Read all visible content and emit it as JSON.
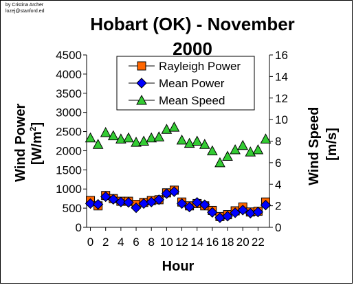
{
  "credit": {
    "line1": "by Cristina Archer",
    "line2": "lozej@stanford.ed"
  },
  "chart_data": {
    "type": "line",
    "title_line1": "Hobart (OK) - November",
    "title_line2": "2000",
    "xlabel": "Hour",
    "ylabel_left_main": "Wind Power",
    "ylabel_left_unit": "[W/m",
    "ylabel_left_sup": "2",
    "ylabel_left_close": "]",
    "ylabel_right_main": "Wind Speed",
    "ylabel_right_unit": "[m/s]",
    "x": [
      0,
      1,
      2,
      3,
      4,
      5,
      6,
      7,
      8,
      9,
      10,
      11,
      12,
      13,
      14,
      15,
      16,
      17,
      18,
      19,
      20,
      21,
      22,
      23
    ],
    "xlim": [
      -0.5,
      23.5
    ],
    "xticks": [
      0,
      2,
      4,
      6,
      8,
      10,
      12,
      14,
      16,
      18,
      20,
      22
    ],
    "xtick_labels": [
      "0",
      "2",
      "4",
      "6",
      "8",
      "10",
      "12",
      "14",
      "16",
      "18",
      "20",
      "22"
    ],
    "ylim_left": [
      0,
      4500
    ],
    "yticks_left": [
      0,
      500,
      1000,
      1500,
      2000,
      2500,
      3000,
      3500,
      4000,
      4500
    ],
    "ytick_labels_left": [
      "0",
      "500",
      "1000",
      "1500",
      "2000",
      "2500",
      "3000",
      "3500",
      "4000",
      "4500"
    ],
    "ylim_right": [
      0,
      16
    ],
    "yticks_right": [
      0,
      2,
      4,
      6,
      8,
      10,
      12,
      14,
      16
    ],
    "ytick_labels_right": [
      "0",
      "2",
      "4",
      "6",
      "8",
      "10",
      "12",
      "14",
      "16"
    ],
    "grid": false,
    "legend_position": "top-center",
    "series": [
      {
        "name": "Rayleigh Power",
        "axis": "left",
        "marker": "square",
        "color": "#ff6600",
        "values": [
          700,
          560,
          830,
          750,
          680,
          680,
          600,
          650,
          700,
          720,
          900,
          970,
          660,
          560,
          620,
          560,
          440,
          280,
          330,
          430,
          530,
          400,
          420,
          660
        ]
      },
      {
        "name": "Mean Power",
        "axis": "left",
        "marker": "diamond",
        "color": "#0000ff",
        "values": [
          620,
          600,
          800,
          730,
          660,
          650,
          510,
          620,
          660,
          720,
          880,
          930,
          620,
          530,
          650,
          590,
          390,
          250,
          290,
          380,
          450,
          370,
          400,
          580
        ]
      },
      {
        "name": "Mean Speed",
        "axis": "right",
        "marker": "triangle",
        "color": "#33cc33",
        "values": [
          8.3,
          7.7,
          8.8,
          8.5,
          8.2,
          8.3,
          7.9,
          8.0,
          8.3,
          8.4,
          9.1,
          9.3,
          8.1,
          7.8,
          8.0,
          7.7,
          7.1,
          6.0,
          6.6,
          7.2,
          7.6,
          7.0,
          7.2,
          8.2
        ]
      }
    ]
  }
}
